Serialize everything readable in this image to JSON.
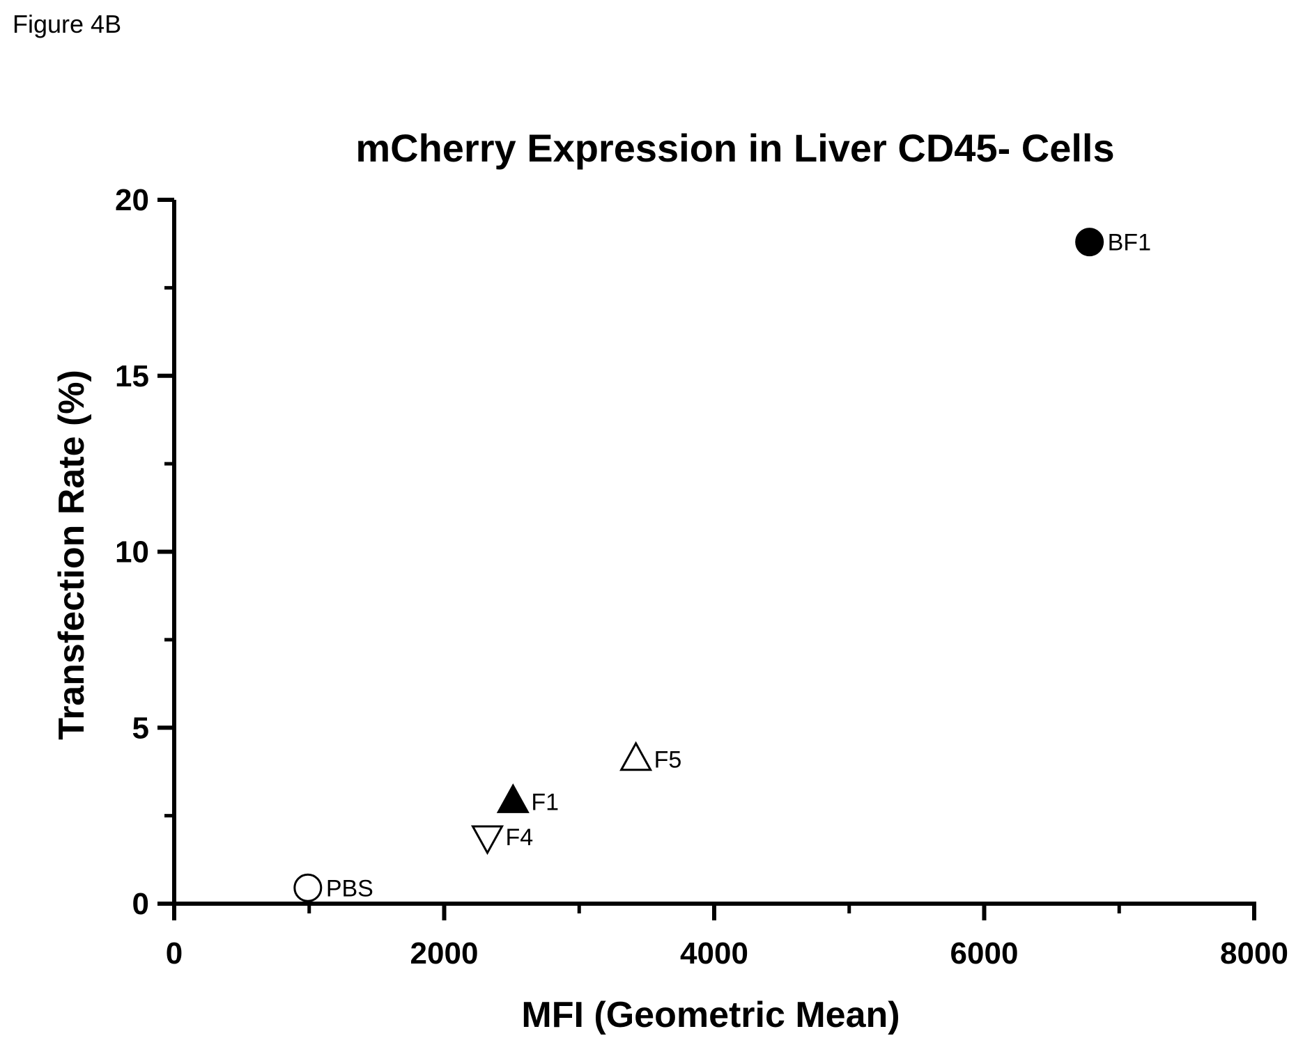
{
  "figure_label": "Figure 4B",
  "chart_data": {
    "type": "scatter",
    "title": "mCherry Expression in Liver CD45- Cells",
    "xlabel": "MFI (Geometric Mean)",
    "ylabel": "Transfection Rate (%)",
    "xlim": [
      0,
      8000
    ],
    "ylim": [
      0,
      20
    ],
    "x_ticks": [
      0,
      2000,
      4000,
      6000,
      8000
    ],
    "x_minor_ticks": [
      1000,
      3000,
      5000,
      7000
    ],
    "y_ticks": [
      0,
      5,
      10,
      15,
      20
    ],
    "y_minor_ticks": [
      2.5,
      7.5,
      12.5,
      17.5
    ],
    "grid": false,
    "legend": "none",
    "points": [
      {
        "label": "BF1",
        "x": 6780,
        "y": 18.8,
        "marker": "circle-filled"
      },
      {
        "label": "F5",
        "x": 3420,
        "y": 4.1,
        "marker": "triangle-up-open"
      },
      {
        "label": "F1",
        "x": 2510,
        "y": 2.9,
        "marker": "triangle-up-filled"
      },
      {
        "label": "F4",
        "x": 2320,
        "y": 1.9,
        "marker": "triangle-down-open"
      },
      {
        "label": "PBS",
        "x": 990,
        "y": 0.45,
        "marker": "circle-open"
      }
    ]
  }
}
